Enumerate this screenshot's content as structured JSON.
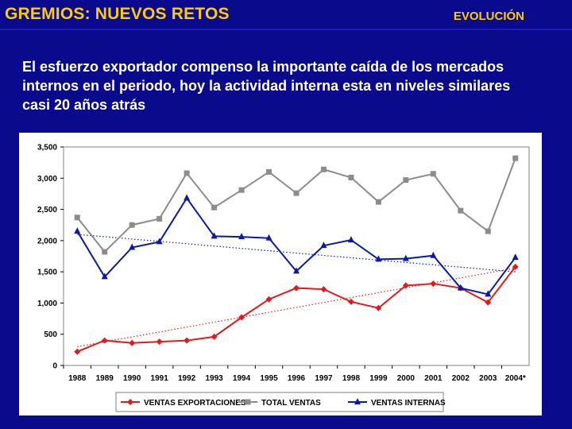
{
  "header": {
    "title": "GREMIOS: NUEVOS RETOS",
    "section": "EVOLUCIÓN"
  },
  "subtitle": "El esfuerzo exportador compenso la importante caída de los mercados internos en el periodo, hoy la actividad interna esta en niveles similares casi 20 años atrás",
  "colors": {
    "background": "#0a0a8c",
    "title": "#ffcc00",
    "exportaciones": "#e31a1c",
    "total": "#8c8c8c",
    "internas": "#0a1aa8"
  },
  "chart_data": {
    "type": "line",
    "categories": [
      "1988",
      "1989",
      "1990",
      "1991",
      "1992",
      "1993",
      "1994",
      "1995",
      "1996",
      "1997",
      "1998",
      "1999",
      "2000",
      "2001",
      "2002",
      "2003",
      "2004*"
    ],
    "y_ticks": [
      0,
      500,
      1000,
      1500,
      2000,
      2500,
      3000,
      3500
    ],
    "y_tick_labels": [
      "0",
      "500",
      "1,000",
      "1,500",
      "2,000",
      "2,500",
      "3,000",
      "3,500"
    ],
    "ylim": [
      0,
      3500
    ],
    "series": [
      {
        "name": "VENTAS  EXPORTACIONES",
        "color": "#e31a1c",
        "marker": "diamond",
        "values": [
          220,
          400,
          360,
          380,
          400,
          460,
          770,
          1060,
          1240,
          1220,
          1020,
          920,
          1280,
          1310,
          1240,
          1010,
          1580
        ],
        "trend": [
          300,
          1560
        ]
      },
      {
        "name": "TOTAL VENTAS",
        "color": "#8c8c8c",
        "marker": "square",
        "values": [
          2370,
          1820,
          2250,
          2350,
          3080,
          2530,
          2810,
          3100,
          2760,
          3140,
          3010,
          2620,
          2970,
          3070,
          2480,
          2150,
          3320
        ],
        "trend": null
      },
      {
        "name": "VENTAS INTERNAS",
        "color": "#0a1aa8",
        "marker": "triangle",
        "values": [
          2150,
          1420,
          1890,
          1980,
          2680,
          2070,
          2060,
          2040,
          1510,
          1920,
          2010,
          1700,
          1710,
          1760,
          1240,
          1140,
          1730
        ],
        "trend": [
          2100,
          1500
        ]
      }
    ]
  }
}
